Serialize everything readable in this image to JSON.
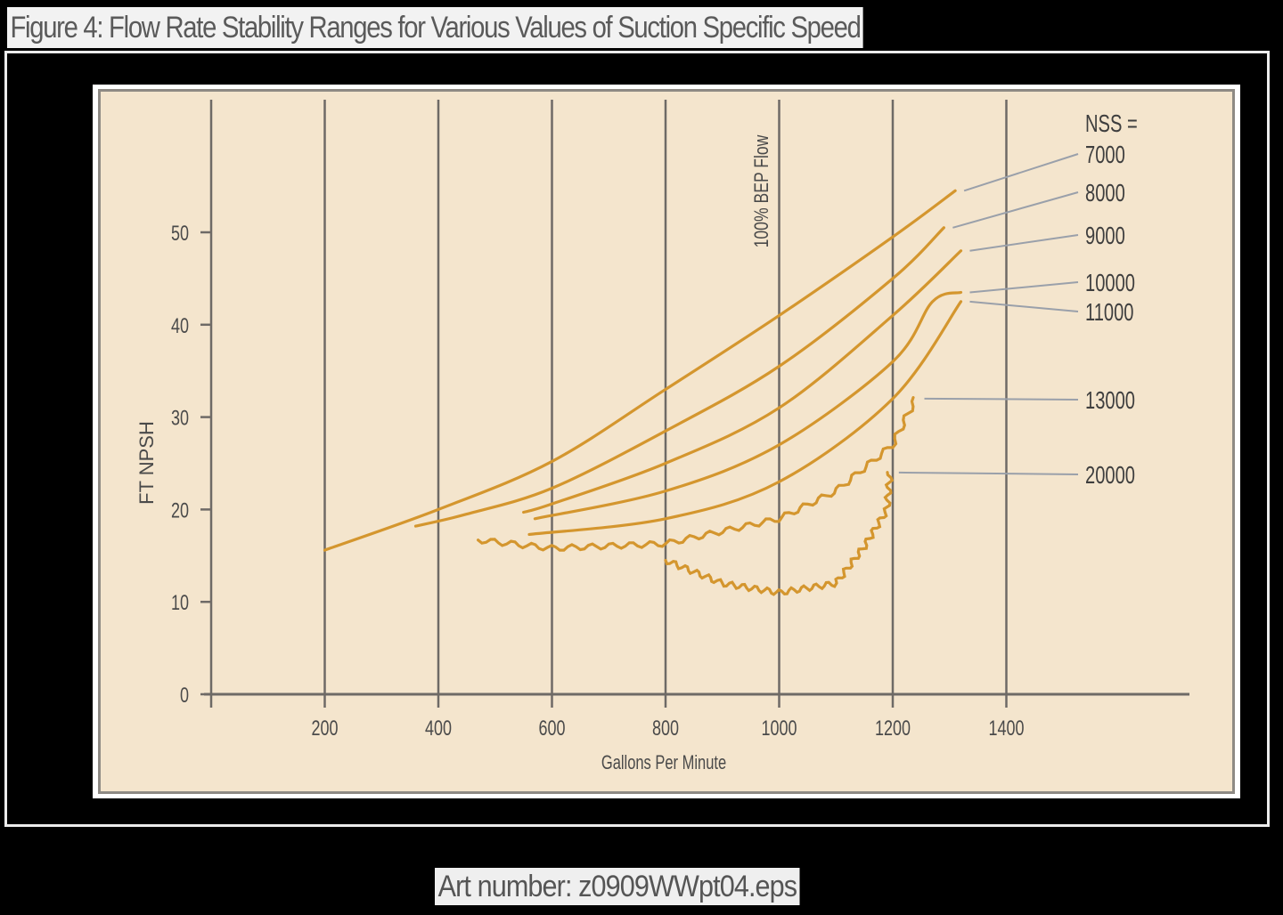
{
  "figure": {
    "title": "Figure 4: Flow Rate Stability Ranges for Various Values of Suction Specific Speed",
    "caption": "Art number: z0909WWpt04.eps"
  },
  "colors": {
    "background": "#000000",
    "panel": "#f4e5cd",
    "curve": "#d4962e",
    "grid": "#6e6a66",
    "leader": "#9aa0aa",
    "text": "#4a4a4a"
  },
  "chart_data": {
    "type": "line",
    "title": "Figure 4: Flow Rate Stability Ranges for Various Values of Suction Specific Speed",
    "xlabel": "Gallons Per Minute",
    "ylabel": "FT NPSH",
    "xlim": [
      0,
      1600
    ],
    "ylim": [
      0,
      55
    ],
    "x_ticks": [
      200,
      400,
      600,
      800,
      1000,
      1200,
      1400
    ],
    "y_ticks": [
      0,
      10,
      20,
      30,
      40,
      50
    ],
    "grid": "vertical lines at every 200 GPM",
    "annotation": {
      "text": "100% BEP Flow",
      "x": 1000
    },
    "legend_title": "NSS =",
    "legend_position": "right, labels with leader lines",
    "series": [
      {
        "name": "7000",
        "x": [
          200,
          400,
          600,
          800,
          1000,
          1200,
          1310
        ],
        "y": [
          15.6,
          20.0,
          25.2,
          33.0,
          41.0,
          49.5,
          54.5
        ]
      },
      {
        "name": "8000",
        "x": [
          360,
          450,
          600,
          800,
          1000,
          1200,
          1290
        ],
        "y": [
          18.2,
          19.5,
          22.3,
          28.5,
          35.5,
          45.0,
          50.5
        ]
      },
      {
        "name": "9000",
        "x": [
          550,
          600,
          800,
          1000,
          1200,
          1320
        ],
        "y": [
          19.7,
          20.6,
          25.0,
          31.0,
          41.0,
          48.0
        ]
      },
      {
        "name": "10000",
        "x": [
          570,
          800,
          1000,
          1200,
          1270,
          1320
        ],
        "y": [
          19.0,
          22.0,
          27.0,
          36.0,
          42.5,
          43.5
        ]
      },
      {
        "name": "11000",
        "x": [
          560,
          800,
          1000,
          1200,
          1320
        ],
        "y": [
          17.3,
          19.0,
          23.0,
          32.0,
          42.5
        ]
      },
      {
        "name": "13000",
        "x": [
          470,
          600,
          800,
          1000,
          1100,
          1200,
          1240
        ],
        "y": [
          16.7,
          15.8,
          16.3,
          19.0,
          22.0,
          27.0,
          32.0
        ]
      },
      {
        "name": "20000",
        "x": [
          800,
          900,
          1000,
          1100,
          1150,
          1190,
          1195
        ],
        "y": [
          14.5,
          12.0,
          11.0,
          12.0,
          16.0,
          20.0,
          24.0
        ]
      }
    ]
  }
}
